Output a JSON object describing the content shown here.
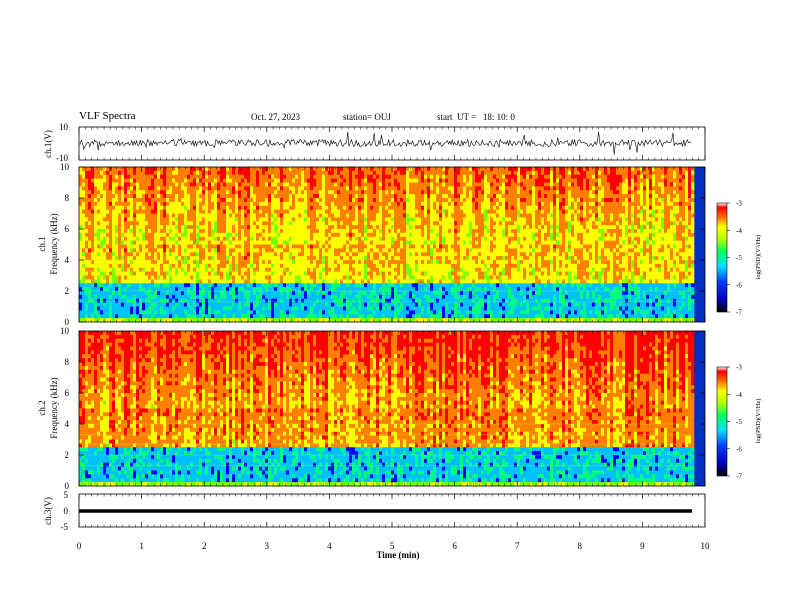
{
  "header": {
    "title": "VLF Spectra",
    "date": "Oct. 27, 2023",
    "station": "station= OUJ",
    "start": "start  UT =   18: 10: 0"
  },
  "chart_data": [
    {
      "type": "line",
      "panel": "ch1-waveform",
      "ylabel": "ch.1(V)",
      "ylim": [
        -10,
        10
      ],
      "y_ticks": [
        "10",
        "-10"
      ],
      "xlim": [
        0,
        10
      ]
    },
    {
      "type": "heatmap",
      "panel": "ch1-spectrogram",
      "ylabel": "ch.1\nFrequency (kHz)",
      "ylim": [
        0,
        10
      ],
      "y_ticks": [
        "0",
        "2",
        "4",
        "6",
        "8",
        "10"
      ],
      "xlim": [
        0,
        10
      ],
      "colorbar": {
        "label": "log(PSD)(V²/Hz)",
        "range": [
          -7,
          -3
        ],
        "ticks": [
          "-3",
          "-4",
          "-5",
          "-6",
          "-7"
        ]
      },
      "colormap": [
        "#000080",
        "#0000ff",
        "#00c0ff",
        "#00ff80",
        "#80ff00",
        "#ffff00",
        "#ff8000",
        "#ff0000"
      ]
    },
    {
      "type": "heatmap",
      "panel": "ch2-spectrogram",
      "ylabel": "ch.2\nFrequency (kHz)",
      "ylim": [
        0,
        10
      ],
      "y_ticks": [
        "0",
        "2",
        "4",
        "6",
        "8",
        "10"
      ],
      "xlim": [
        0,
        10
      ],
      "colorbar": {
        "label": "log(PSD)(V²/Hz)",
        "range": [
          -7,
          -3
        ],
        "ticks": [
          "-3",
          "-4",
          "-5",
          "-6",
          "-7"
        ]
      }
    },
    {
      "type": "line",
      "panel": "ch3-waveform",
      "ylabel": "ch.3(V)",
      "ylim": [
        -5,
        5
      ],
      "y_ticks": [
        "5",
        "0",
        "-5"
      ],
      "xlim": [
        0,
        10
      ],
      "xlabel": "Time (min)",
      "x_ticks": [
        "0",
        "1",
        "2",
        "3",
        "4",
        "5",
        "6",
        "7",
        "8",
        "9",
        "10"
      ]
    }
  ]
}
